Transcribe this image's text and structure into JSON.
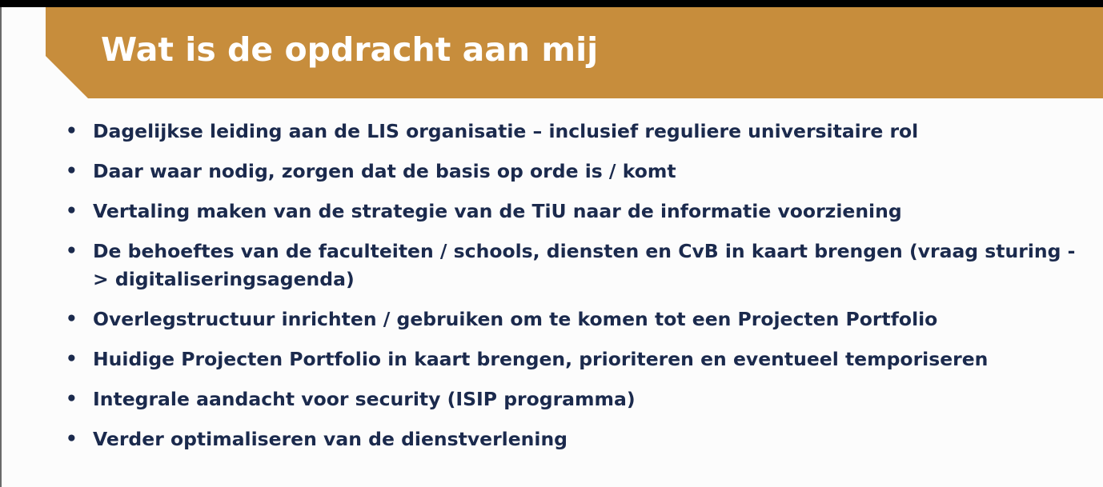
{
  "slide": {
    "title": "Wat is de opdracht aan mij",
    "banner_color": "#c78d3c",
    "text_color": "#1b2a4d",
    "bullet_icon": "bullet-dot-icon",
    "bullets": [
      "Dagelijkse leiding aan de LIS organisatie – inclusief reguliere universitaire rol",
      "Daar waar nodig, zorgen dat de basis op orde is / komt",
      "Vertaling maken van de strategie van de TiU naar de informatie voorziening",
      "De behoeftes van de faculteiten / schools, diensten en CvB in kaart brengen (vraag sturing -> digitaliseringsagenda)",
      "Overlegstructuur inrichten / gebruiken om te komen tot een Projecten Portfolio",
      "Huidige Projecten Portfolio in kaart brengen, prioriteren en eventueel temporiseren",
      "Integrale aandacht voor security (ISIP programma)",
      "Verder optimaliseren van de dienstverlening"
    ]
  }
}
